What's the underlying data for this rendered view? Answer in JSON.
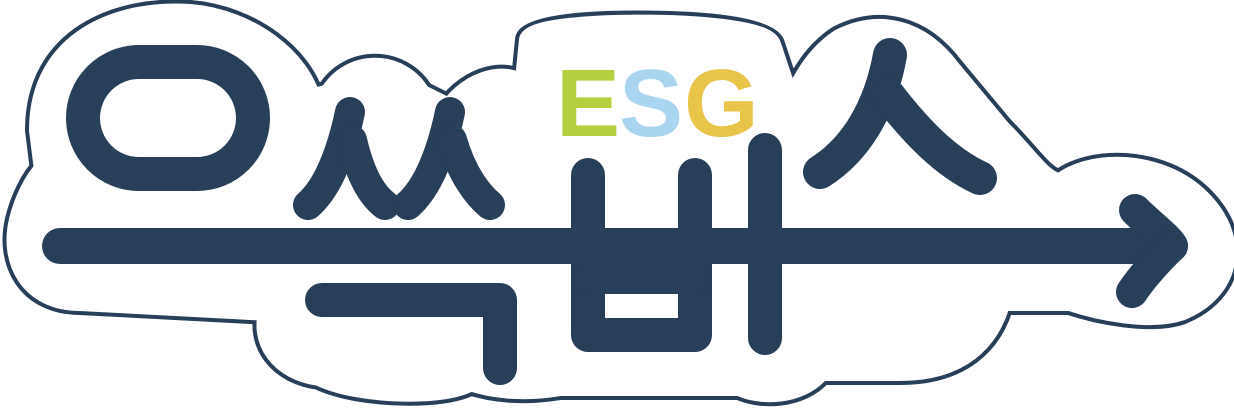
{
  "logo": {
    "hangul_text": "으쓱버스",
    "badge_text": "ESG",
    "badge_letters": [
      {
        "char": "E",
        "color": "#b5d03f"
      },
      {
        "char": "S",
        "color": "#a9d5f0"
      },
      {
        "char": "G",
        "color": "#e8c449"
      }
    ],
    "colors": {
      "ink": "#273f58",
      "outline_fill": "#ffffff",
      "background": "#ffffff"
    }
  }
}
